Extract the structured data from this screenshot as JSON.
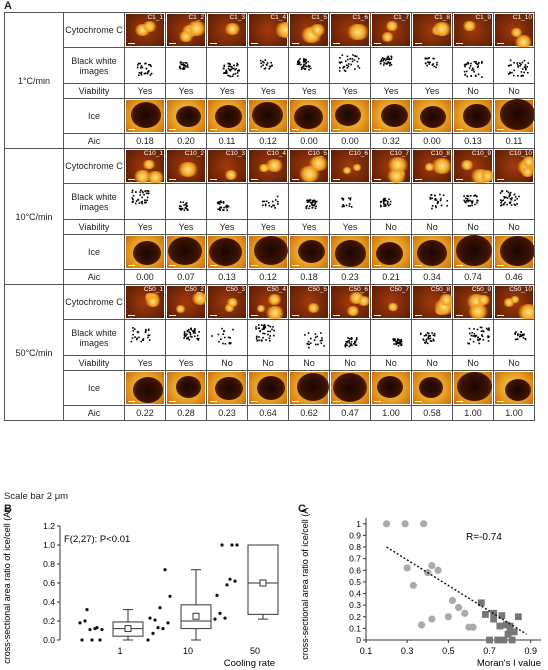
{
  "panel_a": {
    "label": "A",
    "row_labels": {
      "cyto": "Cytochrome C",
      "bw": "Black white images",
      "via": "Viability",
      "ice": "Ice",
      "aic": "Aic"
    },
    "conditions": [
      {
        "rate": "1°C/min",
        "cells": [
          "C1_1",
          "C1_2",
          "C1_3",
          "C1_4",
          "C1_5",
          "C1_6",
          "C1_7",
          "C1_8",
          "C1_9",
          "C1_10"
        ],
        "viability": [
          "Yes",
          "Yes",
          "Yes",
          "Yes",
          "Yes",
          "Yes",
          "Yes",
          "Yes",
          "No",
          "No"
        ],
        "aic": [
          "0.18",
          "0.20",
          "0.11",
          "0.12",
          "0.00",
          "0.00",
          "0.32",
          "0.00",
          "0.13",
          "0.11"
        ]
      },
      {
        "rate": "10°C/min",
        "cells": [
          "C10_1",
          "C10_2",
          "C10_3",
          "C10_4",
          "C10_5",
          "C10_6",
          "C10_7",
          "C10_8",
          "C10_9",
          "C10_10"
        ],
        "viability": [
          "Yes",
          "Yes",
          "Yes",
          "Yes",
          "Yes",
          "Yes",
          "No",
          "No",
          "No",
          "No"
        ],
        "aic": [
          "0.00",
          "0.07",
          "0.13",
          "0.12",
          "0.18",
          "0.23",
          "0.21",
          "0.34",
          "0.74",
          "0.46"
        ]
      },
      {
        "rate": "50°C/min",
        "cells": [
          "C50_1",
          "C50_2",
          "C50_3",
          "C50_4",
          "C50_5",
          "C50_6",
          "C50_7",
          "C50_8",
          "C50_9",
          "C50_10"
        ],
        "viability": [
          "Yes",
          "Yes",
          "No",
          "No",
          "No",
          "No",
          "No",
          "No",
          "No",
          "No"
        ],
        "aic": [
          "0.22",
          "0.28",
          "0.23",
          "0.64",
          "0.62",
          "0.47",
          "1.00",
          "0.58",
          "1.00",
          "1.00"
        ]
      }
    ],
    "scale_bar": "Scale bar 2 μm"
  },
  "chart_data": [
    {
      "type": "box",
      "panel": "B",
      "annotation": "F(2,27): P<0.01",
      "xlabel": "Cooling rate",
      "ylabel": "cross-sectional area ratio of ice/cell (Aic)",
      "categories": [
        "1",
        "10",
        "50"
      ],
      "ylim": [
        0,
        1.2
      ],
      "yticks": [
        "0.0",
        "0.2",
        "0.4",
        "0.6",
        "0.8",
        "1.0",
        "1.2"
      ],
      "points": [
        [
          0.18,
          0.2,
          0.11,
          0.12,
          0.0,
          0.0,
          0.32,
          0.0,
          0.13,
          0.11
        ],
        [
          0.0,
          0.07,
          0.13,
          0.12,
          0.18,
          0.23,
          0.21,
          0.34,
          0.74,
          0.46
        ],
        [
          0.22,
          0.28,
          0.23,
          0.64,
          0.62,
          0.47,
          1.0,
          0.58,
          1.0,
          1.0
        ]
      ],
      "boxes": [
        {
          "min": 0.0,
          "q1": 0.04,
          "median": 0.12,
          "q3": 0.19,
          "max": 0.32,
          "mean": 0.12
        },
        {
          "min": 0.0,
          "q1": 0.12,
          "median": 0.2,
          "q3": 0.37,
          "max": 0.74,
          "mean": 0.25
        },
        {
          "min": 0.22,
          "q1": 0.27,
          "median": 0.6,
          "q3": 1.0,
          "max": 1.0,
          "mean": 0.6
        }
      ]
    },
    {
      "type": "scatter",
      "panel": "C",
      "annotation": "R=-0.74",
      "xlabel": "Moran's I value",
      "ylabel": "cross-sectional area ratio of ice/cell (Aic)",
      "xlim": [
        0.1,
        0.95
      ],
      "ylim": [
        0,
        1.05
      ],
      "xticks": [
        "0.1",
        "0.3",
        "0.5",
        "0.7",
        "0.9"
      ],
      "yticks": [
        "0",
        "0.1",
        "0.2",
        "0.3",
        "0.4",
        "0.5",
        "0.6",
        "0.7",
        "0.8",
        "0.9",
        "1"
      ],
      "series": [
        {
          "marker": "circle",
          "color": "#aaaaaa",
          "x": [
            0.2,
            0.29,
            0.38,
            0.42,
            0.3,
            0.33,
            0.4,
            0.45,
            0.52,
            0.55,
            0.58,
            0.37,
            0.42,
            0.5,
            0.6,
            0.62
          ],
          "y": [
            1.0,
            1.0,
            1.0,
            0.64,
            0.62,
            0.47,
            0.58,
            0.6,
            0.34,
            0.28,
            0.23,
            0.13,
            0.18,
            0.2,
            0.11,
            0.11
          ]
        },
        {
          "marker": "square",
          "color": "#777777",
          "x": [
            0.68,
            0.72,
            0.75,
            0.78,
            0.8,
            0.82,
            0.7,
            0.74,
            0.77,
            0.79,
            0.81,
            0.84,
            0.72,
            0.76,
            0.8,
            0.66
          ],
          "y": [
            0.22,
            0.18,
            0.12,
            0.13,
            0.1,
            0.07,
            0.0,
            0.0,
            0.0,
            0.05,
            0.0,
            0.2,
            0.23,
            0.21,
            0.12,
            0.32
          ]
        }
      ],
      "trendline": {
        "x": [
          0.2,
          0.88
        ],
        "y": [
          0.8,
          0.05
        ]
      }
    }
  ]
}
